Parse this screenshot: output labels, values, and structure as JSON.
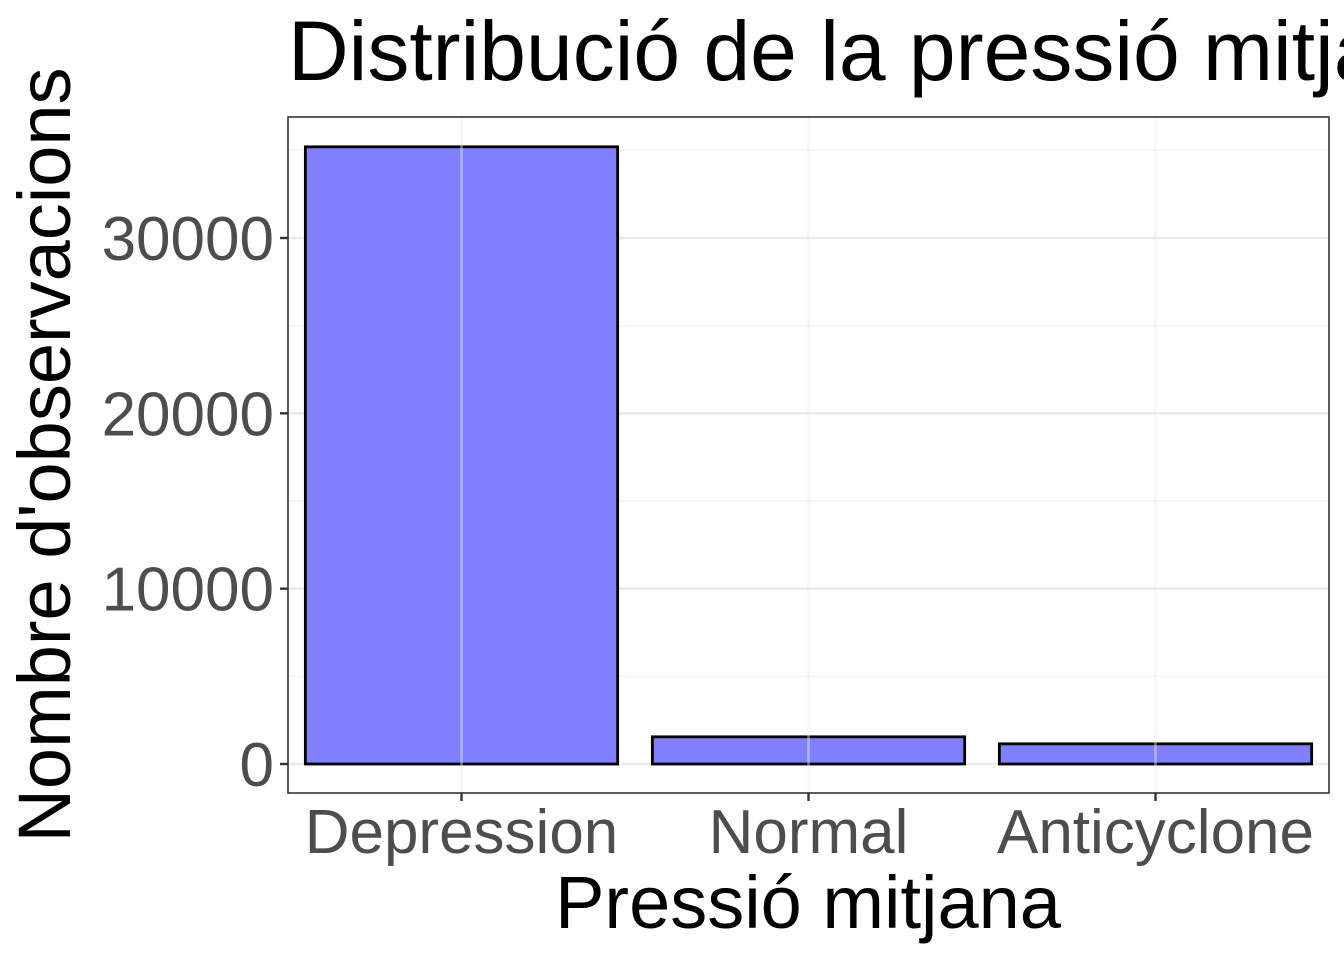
{
  "chart_data": {
    "type": "bar",
    "title": "Distribució de la pressió mitjana",
    "xlabel": "Pressió mitjana",
    "ylabel": "Nombre d'observacions",
    "categories": [
      "Depression",
      "Normal",
      "Anticyclone"
    ],
    "values": [
      35200,
      1550,
      1150
    ],
    "yticks": [
      0,
      10000,
      20000,
      30000
    ],
    "ytick_labels": [
      "0",
      "10000",
      "20000",
      "30000"
    ],
    "ylim": [
      -1700,
      36900
    ],
    "grid": true,
    "bar_fill": "#8080ff",
    "bar_stroke": "#000000"
  }
}
